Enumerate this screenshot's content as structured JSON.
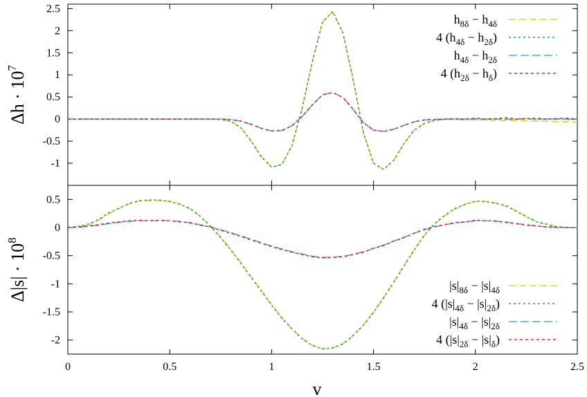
{
  "chart_data": [
    {
      "type": "line",
      "ylabel": "Δh · 10^7",
      "ylabel_parts": {
        "base": "Δh · 10",
        "exp": "7"
      },
      "ylim": [
        -1.5,
        2.6
      ],
      "xlim": [
        0,
        2.5
      ],
      "y_ticks": [
        -1,
        -0.5,
        0,
        0.5,
        1,
        1.5,
        2,
        2.5
      ],
      "y_tick_labels": [
        "-1",
        "-0.5",
        "0",
        "0.5",
        "1",
        "1.5",
        "2",
        "2.5"
      ],
      "legend_position": "top-right",
      "x": [
        0,
        0.05,
        0.1,
        0.15,
        0.2,
        0.25,
        0.3,
        0.35,
        0.4,
        0.45,
        0.5,
        0.55,
        0.6,
        0.65,
        0.7,
        0.75,
        0.8,
        0.85,
        0.9,
        0.95,
        1.0,
        1.05,
        1.1,
        1.15,
        1.2,
        1.25,
        1.3,
        1.35,
        1.4,
        1.45,
        1.5,
        1.55,
        1.6,
        1.65,
        1.7,
        1.75,
        1.8,
        1.85,
        1.9,
        1.95,
        2.0,
        2.05,
        2.1,
        2.15,
        2.2,
        2.25,
        2.3,
        2.35,
        2.4,
        2.45,
        2.5
      ],
      "series": [
        {
          "name": "h_{8δ} − h_{4δ}",
          "color": "#e6d21a",
          "dash": "10,5",
          "values": [
            0,
            0,
            0,
            0,
            0,
            0,
            0,
            0,
            0,
            0,
            0,
            0,
            0,
            0,
            0,
            -0.01,
            -0.05,
            -0.2,
            -0.5,
            -0.85,
            -1.08,
            -1.03,
            -0.6,
            0.25,
            1.3,
            2.2,
            2.42,
            1.95,
            0.9,
            -0.3,
            -1.0,
            -1.14,
            -0.93,
            -0.55,
            -0.25,
            -0.1,
            -0.03,
            -0.01,
            -0.01,
            -0.02,
            -0.02,
            -0.02,
            -0.03,
            -0.03,
            -0.04,
            -0.04,
            -0.05,
            -0.05,
            -0.06,
            -0.06,
            -0.07
          ]
        },
        {
          "name": "4 (h_{4δ} − h_{2δ})",
          "color": "#1a9e6e",
          "dash": "3,4",
          "values": [
            0,
            0,
            0,
            0,
            0,
            0,
            0,
            0,
            0,
            0,
            0,
            0,
            0,
            0,
            0,
            -0.01,
            -0.05,
            -0.2,
            -0.5,
            -0.86,
            -1.09,
            -1.03,
            -0.6,
            0.25,
            1.3,
            2.2,
            2.43,
            1.95,
            0.9,
            -0.3,
            -1.0,
            -1.14,
            -0.93,
            -0.55,
            -0.25,
            -0.1,
            -0.03,
            0.0,
            0.0,
            -0.01,
            0.01,
            -0.01,
            0.01,
            -0.01,
            0.0,
            0.01,
            -0.01,
            0.0,
            0.01,
            -0.01,
            0.0
          ]
        },
        {
          "name": "h_{4δ} − h_{2δ}",
          "color": "#4ea4e0",
          "dash": "12,5",
          "values": [
            0,
            0,
            0,
            0,
            0,
            0,
            0,
            0,
            0,
            0,
            0,
            0,
            0,
            0,
            0,
            0,
            -0.01,
            -0.05,
            -0.12,
            -0.21,
            -0.27,
            -0.26,
            -0.15,
            0.06,
            0.32,
            0.55,
            0.6,
            0.49,
            0.22,
            -0.08,
            -0.25,
            -0.28,
            -0.23,
            -0.14,
            -0.06,
            -0.02,
            -0.01,
            0,
            0,
            0,
            0,
            0,
            0,
            0,
            0,
            0,
            0,
            0,
            0,
            0,
            0
          ]
        },
        {
          "name": "4 (h_{2δ} − h_δ)",
          "color": "#e02a2a",
          "dash": "4,4",
          "values": [
            0,
            0,
            0,
            0,
            0,
            0,
            0,
            0,
            0,
            0,
            0,
            0,
            0,
            0,
            0,
            0,
            -0.01,
            -0.05,
            -0.12,
            -0.21,
            -0.27,
            -0.26,
            -0.15,
            0.06,
            0.32,
            0.55,
            0.6,
            0.49,
            0.22,
            -0.08,
            -0.25,
            -0.28,
            -0.23,
            -0.14,
            -0.06,
            -0.02,
            -0.01,
            0.0,
            0.01,
            0.0,
            0.02,
            0.0,
            0.01,
            0.03,
            0.0,
            0.01,
            0.02,
            0.0,
            0.01,
            0.02,
            0.0
          ]
        }
      ]
    },
    {
      "type": "line",
      "xlabel": "v",
      "ylabel": "Δ|s| · 10^8",
      "ylabel_parts": {
        "base": "Δ|s| · 10",
        "exp": "8"
      },
      "ylim": [
        -2.25,
        0.75
      ],
      "xlim": [
        0,
        2.5
      ],
      "x_ticks": [
        0,
        0.5,
        1,
        1.5,
        2,
        2.5
      ],
      "x_tick_labels": [
        "0",
        "0.5",
        "1",
        "1.5",
        "2",
        "2.5"
      ],
      "y_ticks": [
        -2,
        -1.5,
        -1,
        -0.5,
        0,
        0.5
      ],
      "y_tick_labels": [
        "-2",
        "-1.5",
        "-1",
        "-0.5",
        "0",
        "0.5"
      ],
      "legend_position": "bottom-right",
      "x": [
        0,
        0.05,
        0.1,
        0.15,
        0.2,
        0.25,
        0.3,
        0.35,
        0.4,
        0.45,
        0.5,
        0.55,
        0.6,
        0.65,
        0.7,
        0.75,
        0.8,
        0.85,
        0.9,
        0.95,
        1.0,
        1.05,
        1.1,
        1.15,
        1.2,
        1.25,
        1.3,
        1.35,
        1.4,
        1.45,
        1.5,
        1.55,
        1.6,
        1.65,
        1.7,
        1.75,
        1.8,
        1.85,
        1.9,
        1.95,
        2.0,
        2.05,
        2.1,
        2.15,
        2.2,
        2.25,
        2.3,
        2.35,
        2.4,
        2.45,
        2.5
      ],
      "series": [
        {
          "name": "|s|_{8δ} − |s|_{4δ}",
          "color": "#e6d21a",
          "dash": "10,5",
          "values": [
            0,
            0.01,
            0.05,
            0.13,
            0.24,
            0.34,
            0.42,
            0.47,
            0.48,
            0.48,
            0.47,
            0.42,
            0.33,
            0.2,
            0.03,
            -0.17,
            -0.39,
            -0.63,
            -0.88,
            -1.12,
            -1.37,
            -1.6,
            -1.8,
            -1.97,
            -2.09,
            -2.15,
            -2.14,
            -2.06,
            -1.92,
            -1.73,
            -1.5,
            -1.24,
            -0.96,
            -0.67,
            -0.39,
            -0.14,
            0.06,
            0.21,
            0.33,
            0.42,
            0.46,
            0.47,
            0.44,
            0.38,
            0.3,
            0.2,
            0.11,
            0.05,
            0.02,
            0.0,
            0.0
          ]
        },
        {
          "name": "4 (|s|_{4δ} − |s|_{2δ})",
          "color": "#1a9e6e",
          "dash": "3,4",
          "values": [
            0,
            0.02,
            0.06,
            0.14,
            0.26,
            0.34,
            0.43,
            0.48,
            0.49,
            0.49,
            0.46,
            0.41,
            0.34,
            0.2,
            0.02,
            -0.18,
            -0.4,
            -0.64,
            -0.89,
            -1.13,
            -1.38,
            -1.61,
            -1.8,
            -1.98,
            -2.1,
            -2.16,
            -2.14,
            -2.07,
            -1.92,
            -1.74,
            -1.51,
            -1.25,
            -0.97,
            -0.68,
            -0.4,
            -0.13,
            0.07,
            0.22,
            0.34,
            0.41,
            0.47,
            0.46,
            0.43,
            0.39,
            0.29,
            0.19,
            0.1,
            0.06,
            0.01,
            0.0,
            0.0
          ]
        },
        {
          "name": "|s|_{4δ} − |s|_{2δ}",
          "color": "#4ea4e0",
          "dash": "12,5",
          "values": [
            0,
            0.0,
            0.02,
            0.04,
            0.07,
            0.09,
            0.11,
            0.12,
            0.12,
            0.12,
            0.12,
            0.11,
            0.08,
            0.05,
            0.01,
            -0.04,
            -0.09,
            -0.15,
            -0.21,
            -0.27,
            -0.33,
            -0.38,
            -0.43,
            -0.47,
            -0.51,
            -0.53,
            -0.53,
            -0.51,
            -0.48,
            -0.43,
            -0.37,
            -0.31,
            -0.24,
            -0.17,
            -0.1,
            -0.04,
            0.01,
            0.05,
            0.08,
            0.1,
            0.12,
            0.12,
            0.11,
            0.1,
            0.07,
            0.05,
            0.03,
            0.01,
            0.0,
            0.0,
            0.0
          ]
        },
        {
          "name": "4 (|s|_{2δ} − |s|_δ)",
          "color": "#e02a2a",
          "dash": "4,4",
          "values": [
            0,
            0.01,
            0.03,
            0.05,
            0.08,
            0.1,
            0.12,
            0.13,
            0.12,
            0.13,
            0.12,
            0.1,
            0.09,
            0.04,
            0.01,
            -0.05,
            -0.1,
            -0.16,
            -0.22,
            -0.28,
            -0.34,
            -0.39,
            -0.44,
            -0.48,
            -0.52,
            -0.54,
            -0.53,
            -0.52,
            -0.48,
            -0.44,
            -0.37,
            -0.32,
            -0.24,
            -0.18,
            -0.1,
            -0.03,
            0.02,
            0.05,
            0.09,
            0.1,
            0.13,
            0.12,
            0.12,
            0.09,
            0.07,
            0.04,
            0.03,
            0.01,
            0.01,
            0.0,
            0.0
          ]
        }
      ]
    }
  ]
}
